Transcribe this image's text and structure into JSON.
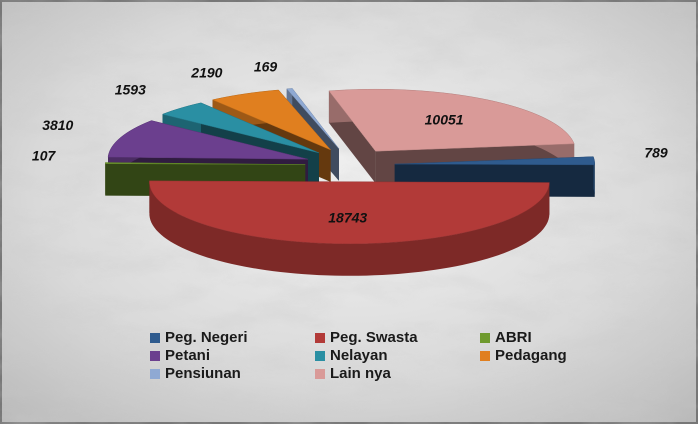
{
  "chart_data": {
    "type": "pie",
    "categories": [
      "Peg. Negeri",
      "Peg. Swasta",
      "ABRI",
      "Petani",
      "Nelayan",
      "Pedagang",
      "Pensiunan",
      "Lain nya"
    ],
    "values": [
      789,
      18743,
      107,
      3810,
      1593,
      2190,
      169,
      10051
    ],
    "colors": [
      "#2f5b8e",
      "#b23a38",
      "#6f9a2e",
      "#6b3f8e",
      "#2a8fa3",
      "#e07f1f",
      "#8fa9d3",
      "#d99a98"
    ]
  }
}
